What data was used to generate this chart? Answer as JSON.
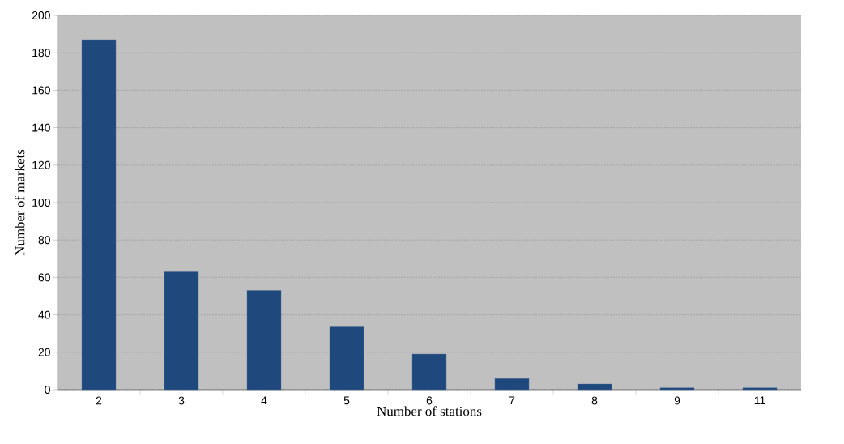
{
  "chart_data": {
    "type": "bar",
    "xlabel": "Number of stations",
    "ylabel": "Number of markets",
    "categories": [
      "2",
      "3",
      "4",
      "5",
      "6",
      "7",
      "8",
      "9",
      "11"
    ],
    "values": [
      187,
      63,
      53,
      34,
      19,
      6,
      3,
      1,
      1
    ],
    "color": "#1f497d",
    "ylim": [
      0,
      200
    ],
    "yticks": [
      0,
      20,
      40,
      60,
      80,
      100,
      120,
      140,
      160,
      180,
      200
    ],
    "grid": "y"
  }
}
